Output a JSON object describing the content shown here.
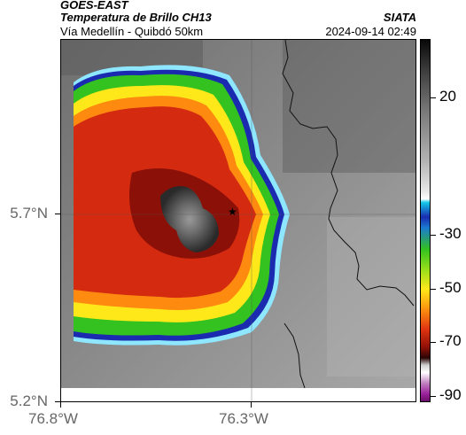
{
  "header": {
    "source": "GOES-EAST",
    "product": "Temperatura de Brillo CH13",
    "region": "Vía Medellín - Quibdó 50km",
    "organization": "SIATA",
    "datetime": "2024-09-14 02:49"
  },
  "axes": {
    "lat_ticks": [
      "5.7°N",
      "5.2°N"
    ],
    "lon_ticks": [
      "76.8°W",
      "76.3°W"
    ]
  },
  "colorbar": {
    "labels": [
      "20",
      "-30",
      "-50",
      "-70",
      "-90"
    ]
  },
  "marker": {
    "icon": "star-icon"
  },
  "colors": {
    "warm_gray": "#8a8a8a",
    "cold_core": "#2b2b2b",
    "red": "#d42a10",
    "yellow": "#ffe81a",
    "green": "#33c21f",
    "blue": "#1a2bb0",
    "cyan": "#14c8e8"
  }
}
